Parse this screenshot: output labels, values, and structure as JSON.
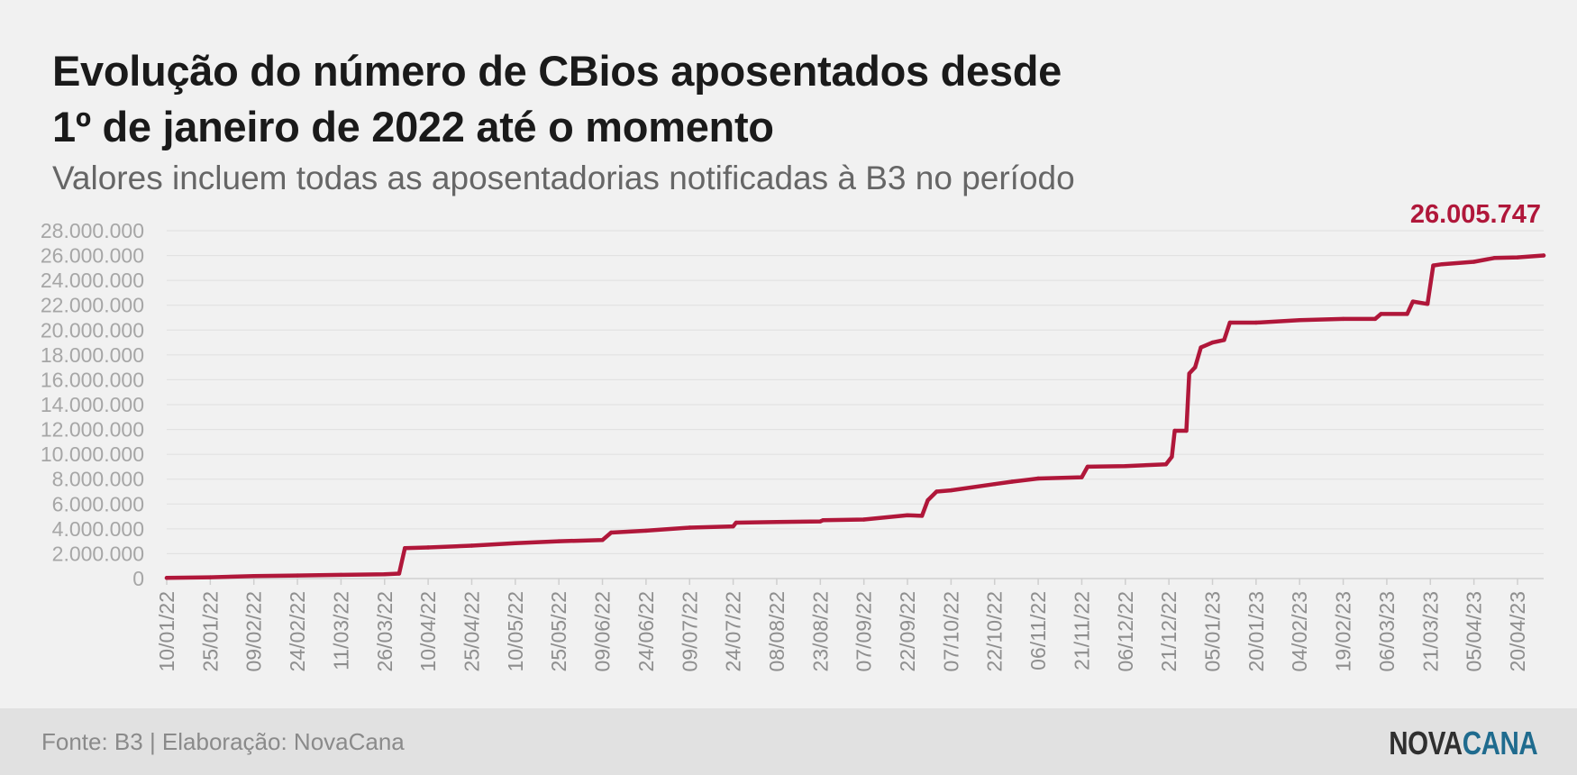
{
  "header": {
    "title_line1": "Evolução do número de CBios aposentados desde",
    "title_line2": "1º de janeiro de 2022 até o momento",
    "subtitle": "Valores incluem todas as aposentadorias notificadas à B3 no período"
  },
  "footer": {
    "source": "Fonte: B3 | Elaboração: NovaCana",
    "logo_part1": "NOVA",
    "logo_part2": "CANA"
  },
  "colors": {
    "line": "#b0173a",
    "axis_text": "#a6a6a6",
    "grid": "#e0e0e0",
    "logo_cana": "#1f6b8e"
  },
  "chart_data": {
    "type": "line",
    "title": "Evolução do número de CBios aposentados desde 1º de janeiro de 2022 até o momento",
    "subtitle": "Valores incluem todas as aposentadorias notificadas à B3 no período",
    "xlabel": "",
    "ylabel": "",
    "ylim": [
      0,
      28000000
    ],
    "grid": true,
    "legend": "none",
    "y_ticks": [
      "0",
      "2.000.000",
      "4.000.000",
      "6.000.000",
      "8.000.000",
      "10.000.000",
      "12.000.000",
      "14.000.000",
      "16.000.000",
      "18.000.000",
      "20.000.000",
      "22.000.000",
      "24.000.000",
      "26.000.000",
      "28.000.000"
    ],
    "x_ticks": [
      "10/01/22",
      "25/01/22",
      "09/02/22",
      "24/02/22",
      "11/03/22",
      "26/03/22",
      "10/04/22",
      "25/04/22",
      "10/05/22",
      "25/05/22",
      "09/06/22",
      "24/06/22",
      "09/07/22",
      "24/07/22",
      "08/08/22",
      "23/08/22",
      "07/09/22",
      "22/09/22",
      "07/10/22",
      "22/10/22",
      "06/11/22",
      "21/11/22",
      "06/12/22",
      "21/12/22",
      "05/01/23",
      "20/01/23",
      "04/02/23",
      "19/02/23",
      "06/03/23",
      "21/03/23",
      "05/04/23",
      "20/04/23"
    ],
    "x_range": [
      "10/01/22",
      "29/04/23"
    ],
    "last_value_label": "26.005.747",
    "series": [
      {
        "x": [
          "10/01/22",
          "25/01/22",
          "09/02/22",
          "24/02/22",
          "11/03/22",
          "26/03/22",
          "31/03/22",
          "02/04/22",
          "10/04/22",
          "25/04/22",
          "10/05/22",
          "25/05/22",
          "09/06/22",
          "12/06/22",
          "24/06/22",
          "09/07/22",
          "24/07/22",
          "25/07/22",
          "08/08/22",
          "23/08/22",
          "24/08/22",
          "07/09/22",
          "22/09/22",
          "27/09/22",
          "29/09/22",
          "02/10/22",
          "07/10/22",
          "22/10/22",
          "28/10/22",
          "06/11/22",
          "21/11/22",
          "23/11/22",
          "06/12/22",
          "20/12/22",
          "22/12/22",
          "23/12/22",
          "27/12/22",
          "28/12/22",
          "30/12/22",
          "01/01/23",
          "05/01/23",
          "09/01/23",
          "11/01/23",
          "20/01/23",
          "04/02/23",
          "19/02/23",
          "02/03/23",
          "04/03/23",
          "13/03/23",
          "15/03/23",
          "20/03/23",
          "22/03/23",
          "25/03/23",
          "05/04/23",
          "12/04/23",
          "20/04/23",
          "29/04/23"
        ],
        "values": [
          50000,
          100000,
          200000,
          250000,
          300000,
          350000,
          400000,
          2450000,
          2500000,
          2650000,
          2850000,
          3000000,
          3100000,
          3700000,
          3850000,
          4100000,
          4200000,
          4500000,
          4550000,
          4600000,
          4700000,
          4750000,
          5100000,
          5050000,
          6300000,
          7000000,
          7100000,
          7600000,
          7800000,
          8050000,
          8150000,
          9000000,
          9050000,
          9200000,
          9800000,
          11900000,
          11900000,
          16500000,
          17000000,
          18600000,
          19000000,
          19200000,
          20600000,
          20600000,
          20800000,
          20900000,
          20900000,
          21300000,
          21300000,
          22300000,
          22100000,
          25200000,
          25300000,
          25500000,
          25800000,
          25850000,
          26005747
        ]
      }
    ]
  }
}
